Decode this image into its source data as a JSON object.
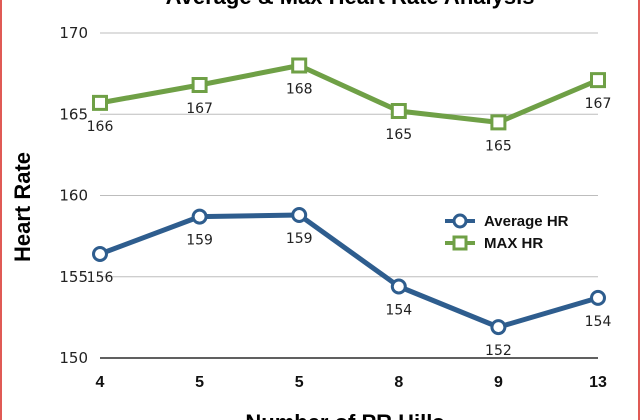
{
  "chart_data": {
    "type": "line",
    "title": "Average & Max Heart Rate Analysis",
    "xlabel": "Number of PR Hills",
    "ylabel": "Heart Rate",
    "categories": [
      "4",
      "5",
      "5",
      "8",
      "9",
      "13"
    ],
    "ylim": [
      150,
      170
    ],
    "yticks": [
      150,
      155,
      160,
      165,
      170
    ],
    "grid": true,
    "legend": "right",
    "series": [
      {
        "name": "Average HR",
        "values": [
          156.4,
          158.7,
          158.8,
          154.4,
          151.9,
          153.7
        ],
        "labels": [
          "156",
          "159",
          "159",
          "154",
          "152",
          "154"
        ],
        "color": "#2e5d8e",
        "marker": "circle"
      },
      {
        "name": "MAX HR",
        "values": [
          165.7,
          166.8,
          168.0,
          165.2,
          164.5,
          167.1
        ],
        "labels": [
          "166",
          "167",
          "168",
          "165",
          "165",
          "167"
        ],
        "color": "#6fa046",
        "marker": "square"
      }
    ]
  }
}
